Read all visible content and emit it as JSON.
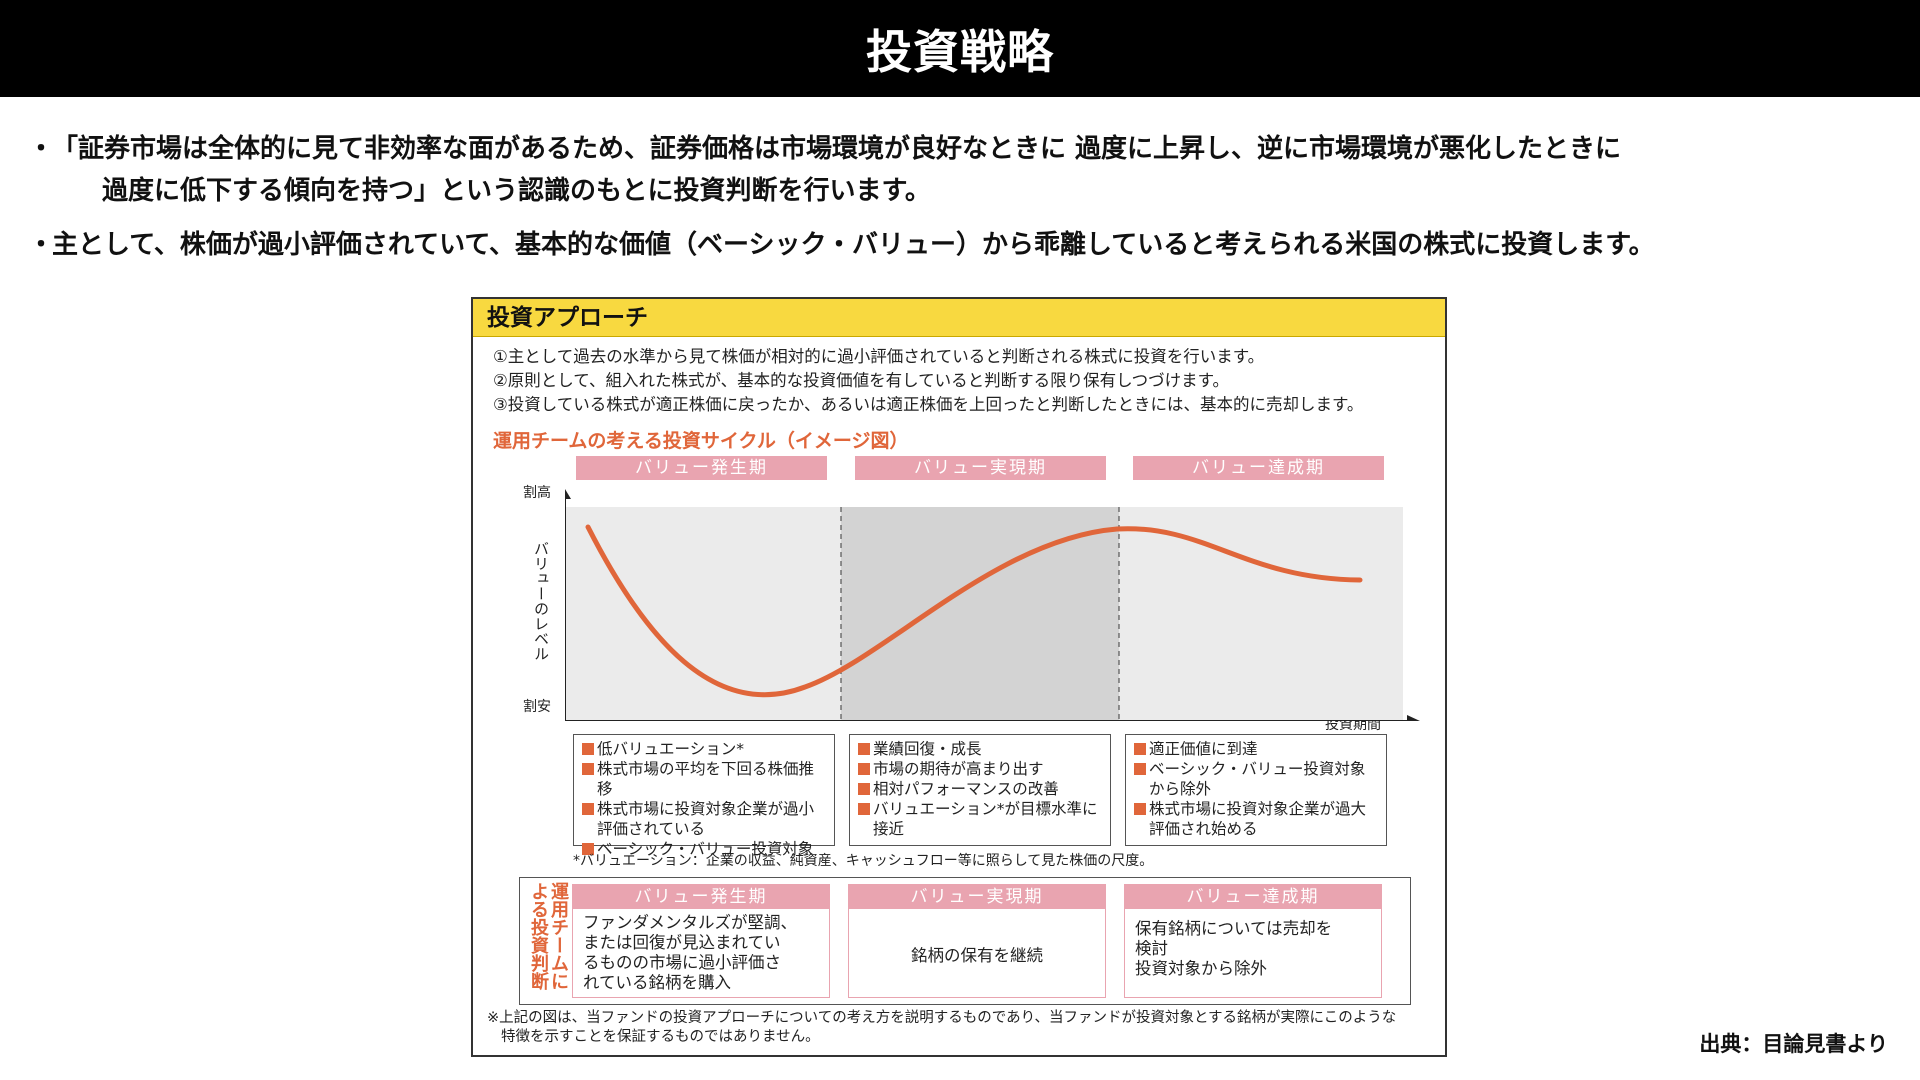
{
  "header": {
    "title": "投資戦略"
  },
  "bullets": [
    {
      "marker": "・",
      "line1": "「証券市場は全体的に見て非効率な面があるため、証券価格は市場環境が良好なときに 過度に上昇し、逆に市場環境が悪化したときに",
      "line2": "過度に低下する傾向を持つ」という認識のもとに投資判断を行います。"
    },
    {
      "marker": "・",
      "line1": "主として、株価が過小評価されていて、基本的な価値（ベーシック・バリュー）から乖離していると考えられる米国の株式に投資します。"
    }
  ],
  "figure": {
    "heading": "投資アプローチ",
    "notes": [
      "①主として過去の水準から見て株価が相対的に過小評価されていると判断される株式に投資を行います。",
      "②原則として、組入れた株式が、基本的な投資価値を有していると判断する限り保有しつづけます。",
      "③投資している株式が適正株価に戻ったか、あるいは適正株価を上回ったと判断したときには、基本的に売却します。"
    ],
    "cycle_title": "運用チームの考える投資サイクル（イメージ図）",
    "phases": [
      "バリュー発生期",
      "バリュー実現期",
      "バリュー達成期"
    ],
    "y_top_label": "割高",
    "y_bottom_label": "割安",
    "y_axis_title": "バリューのレベル",
    "x_axis_label": "投資期間",
    "descriptions": [
      {
        "items": [
          {
            "lines": [
              "低バリュエーション*"
            ]
          },
          {
            "lines": [
              "株式市場の平均を下回る株価推移"
            ]
          },
          {
            "lines": [
              "株式市場に投資対象企業が過小",
              "評価されている"
            ]
          },
          {
            "lines": [
              "ベーシック・バリュー投資対象"
            ]
          }
        ]
      },
      {
        "items": [
          {
            "lines": [
              "業績回復・成長"
            ]
          },
          {
            "lines": [
              "市場の期待が高まり出す"
            ]
          },
          {
            "lines": [
              "相対パフォーマンスの改善"
            ]
          },
          {
            "lines": [
              "バリュエーション*が目標水準に",
              "接近"
            ]
          }
        ]
      },
      {
        "items": [
          {
            "lines": [
              "適正価値に到達"
            ]
          },
          {
            "lines": [
              "ベーシック・バリュー投資対象",
              "から除外"
            ]
          },
          {
            "lines": [
              "株式市場に投資対象企業が過大",
              "評価され始める"
            ]
          }
        ]
      }
    ],
    "valuation_note": "*バリュエーション：企業の収益、純資産、キャッシュフロー等に照らして見た株価の尺度。",
    "decision_label": "運用チームによる投資判断",
    "decisions": [
      {
        "phase": "バリュー発生期",
        "lines": [
          "ファンダメンタルズが堅調、",
          "または回復が見込まれてい",
          "るものの市場に過小評価さ",
          "れている銘柄を購入"
        ]
      },
      {
        "phase": "バリュー実現期",
        "lines": [
          "銘柄の保有を継続"
        ]
      },
      {
        "phase": "バリュー達成期",
        "lines": [
          "保有銘柄については売却を",
          "検討",
          "投資対象から除外"
        ]
      }
    ],
    "disclaimer": [
      "※上記の図は、当ファンドの投資アプローチについての考え方を説明するものであり、当ファンドが投資対象とする銘柄が実際にこのような",
      "特徴を示すことを保証するものではありません。"
    ],
    "colors": {
      "accent": "#e0663a",
      "header_yellow": "#f8d940",
      "phase_pink": "#e9a4b0",
      "middle_band": "#d3d3d3",
      "plot_bg": "#ebebeb"
    }
  },
  "source": "出典：目論見書より"
}
